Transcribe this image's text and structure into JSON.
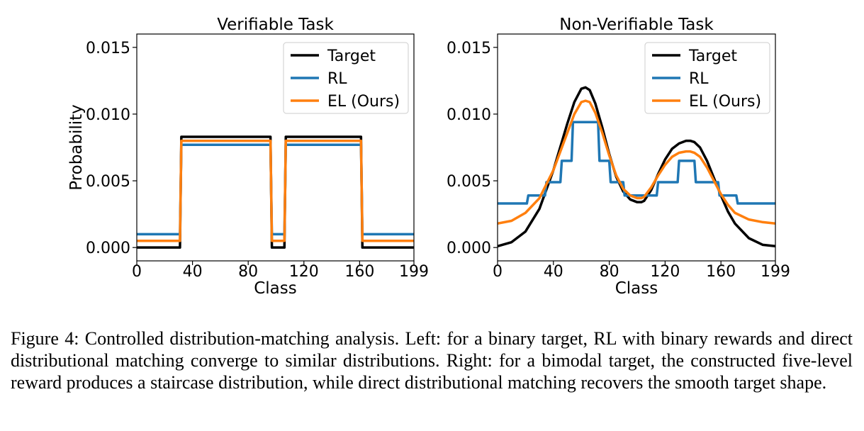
{
  "chart_data": [
    {
      "type": "line",
      "title": "Verifiable Task",
      "xlabel": "Class",
      "ylabel": "Probability",
      "xlim": [
        0,
        199
      ],
      "ylim": [
        -0.001,
        0.016
      ],
      "xticks": [
        0,
        40,
        80,
        120,
        160,
        199
      ],
      "xtick_labels": [
        "0",
        "40",
        "80",
        "120",
        "160",
        "199"
      ],
      "yticks": [
        0.0,
        0.005,
        0.01,
        0.015
      ],
      "ytick_labels": [
        "0.000",
        "0.005",
        "0.010",
        "0.015"
      ],
      "grid": false,
      "legend_position": "top-right",
      "series": [
        {
          "name": "Target",
          "color": "#000000",
          "x": [
            0,
            31,
            32,
            96,
            97,
            106,
            107,
            161,
            162,
            199
          ],
          "y": [
            0.0,
            0.0,
            0.0083,
            0.0083,
            0.0,
            0.0,
            0.0083,
            0.0083,
            0.0,
            0.0
          ]
        },
        {
          "name": "RL",
          "color": "#1f77b4",
          "x": [
            0,
            31,
            32,
            96,
            97,
            106,
            107,
            161,
            162,
            199
          ],
          "y": [
            0.001,
            0.001,
            0.0077,
            0.0077,
            0.001,
            0.001,
            0.0077,
            0.0077,
            0.001,
            0.001
          ]
        },
        {
          "name": "EL (Ours)",
          "color": "#ff7f0e",
          "x": [
            0,
            31,
            32,
            96,
            97,
            106,
            107,
            161,
            162,
            199
          ],
          "y": [
            0.0005,
            0.0005,
            0.008,
            0.008,
            0.0005,
            0.0005,
            0.008,
            0.008,
            0.0005,
            0.0005
          ]
        }
      ]
    },
    {
      "type": "line",
      "title": "Non-Verifiable Task",
      "xlabel": "Class",
      "ylabel": "",
      "xlim": [
        0,
        199
      ],
      "ylim": [
        -0.001,
        0.016
      ],
      "xticks": [
        0,
        40,
        80,
        120,
        160,
        199
      ],
      "xtick_labels": [
        "0",
        "40",
        "80",
        "120",
        "160",
        "199"
      ],
      "yticks": [
        0.0,
        0.005,
        0.01,
        0.015
      ],
      "ytick_labels": [
        "0.000",
        "0.005",
        "0.010",
        "0.015"
      ],
      "grid": false,
      "legend_position": "top-right",
      "series": [
        {
          "name": "Target",
          "color": "#000000",
          "x": [
            0,
            10,
            20,
            30,
            40,
            50,
            55,
            60,
            63,
            66,
            70,
            75,
            80,
            85,
            90,
            95,
            100,
            103,
            105,
            110,
            115,
            120,
            125,
            130,
            135,
            138,
            141,
            145,
            150,
            155,
            160,
            165,
            170,
            180,
            190,
            199
          ],
          "y": [
            0.0001,
            0.0004,
            0.0012,
            0.0029,
            0.0058,
            0.0093,
            0.0109,
            0.0119,
            0.012,
            0.0118,
            0.0108,
            0.009,
            0.007,
            0.0053,
            0.0042,
            0.0036,
            0.0034,
            0.0034,
            0.0035,
            0.0043,
            0.0055,
            0.0066,
            0.0074,
            0.0078,
            0.008,
            0.008,
            0.0079,
            0.0075,
            0.0065,
            0.0052,
            0.0039,
            0.0027,
            0.0018,
            0.0007,
            0.0002,
            0.0001
          ]
        },
        {
          "name": "RL",
          "color": "#1f77b4",
          "x": [
            0,
            21,
            22,
            34,
            35,
            45,
            46,
            53,
            54,
            72,
            73,
            80,
            81,
            90,
            91,
            114,
            115,
            129,
            130,
            141,
            142,
            158,
            159,
            171,
            172,
            199
          ],
          "y": [
            0.0033,
            0.0033,
            0.0039,
            0.0039,
            0.0049,
            0.0049,
            0.0065,
            0.0065,
            0.0094,
            0.0094,
            0.0065,
            0.0065,
            0.0049,
            0.0049,
            0.0039,
            0.0039,
            0.0049,
            0.0049,
            0.0065,
            0.0065,
            0.0049,
            0.0049,
            0.0039,
            0.0039,
            0.0033,
            0.0033
          ]
        },
        {
          "name": "EL (Ours)",
          "color": "#ff7f0e",
          "x": [
            0,
            10,
            20,
            30,
            40,
            50,
            55,
            60,
            63,
            66,
            70,
            75,
            80,
            85,
            90,
            95,
            100,
            103,
            105,
            110,
            115,
            120,
            125,
            130,
            135,
            138,
            141,
            145,
            150,
            155,
            160,
            165,
            170,
            180,
            190,
            199
          ],
          "y": [
            0.0018,
            0.002,
            0.0026,
            0.0037,
            0.0058,
            0.0086,
            0.01,
            0.0109,
            0.011,
            0.0109,
            0.0101,
            0.0086,
            0.0069,
            0.0054,
            0.0044,
            0.0039,
            0.0037,
            0.0037,
            0.0038,
            0.0045,
            0.0054,
            0.0062,
            0.0068,
            0.0071,
            0.0072,
            0.0072,
            0.0071,
            0.0068,
            0.006,
            0.005,
            0.004,
            0.0032,
            0.0026,
            0.0021,
            0.0019,
            0.0018
          ]
        }
      ]
    }
  ],
  "caption": "Figure 4: Controlled distribution-matching analysis. Left: for a binary target, RL with binary rewards and direct distributional matching converge to similar distributions. Right: for a bimodal target, the constructed five-level reward produces a staircase distribution, while direct distributional matching recovers the smooth target shape."
}
